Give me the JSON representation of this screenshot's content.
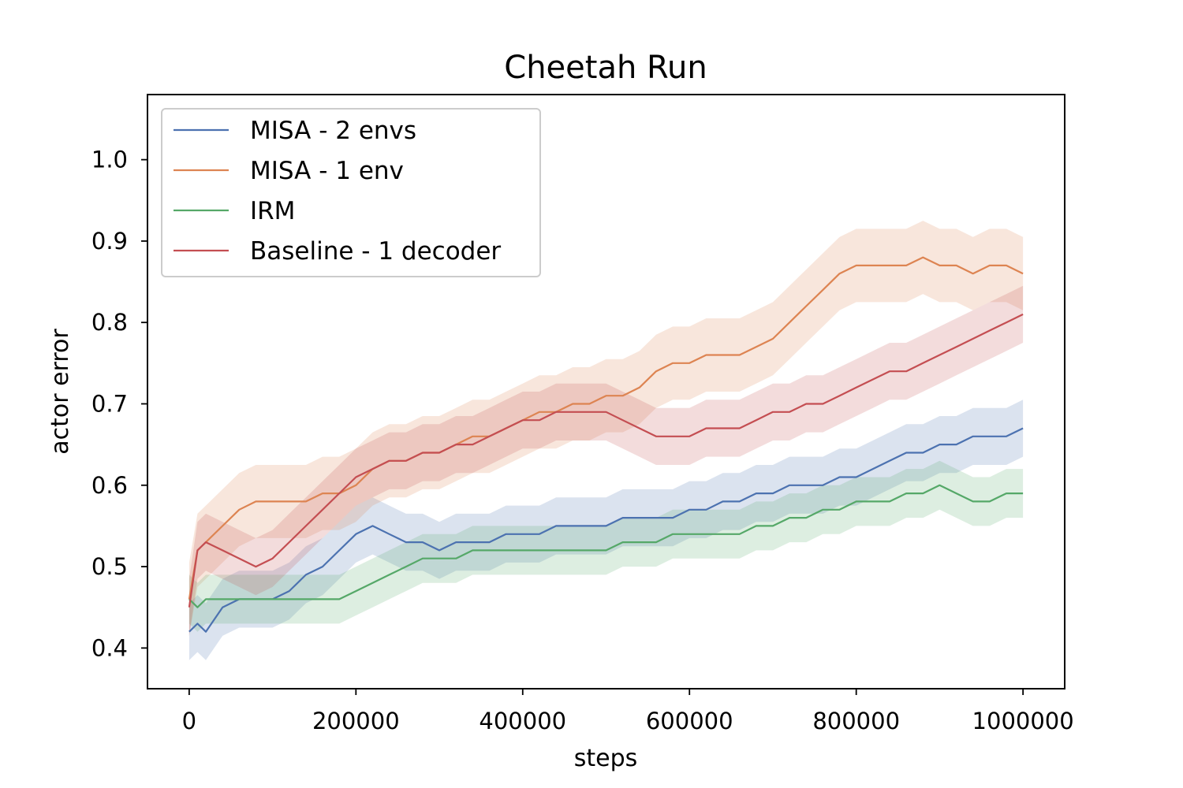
{
  "chart_data": {
    "type": "line",
    "title": "Cheetah Run",
    "xlabel": "steps",
    "ylabel": "actor error",
    "xlim": [
      -50000,
      1050000
    ],
    "ylim": [
      0.35,
      1.08
    ],
    "xticks": [
      0,
      200000,
      400000,
      600000,
      800000,
      1000000
    ],
    "xtick_labels": [
      "0",
      "200000",
      "400000",
      "600000",
      "800000",
      "1000000"
    ],
    "yticks": [
      0.4,
      0.5,
      0.6,
      0.7,
      0.8,
      0.9,
      1.0
    ],
    "ytick_labels": [
      "0.4",
      "0.5",
      "0.6",
      "0.7",
      "0.8",
      "0.9",
      "1.0"
    ],
    "grid": false,
    "legend_position": "upper-left",
    "shaded_band": "variability around each mean line",
    "x": [
      0,
      10000,
      20000,
      40000,
      60000,
      80000,
      100000,
      120000,
      140000,
      160000,
      180000,
      200000,
      220000,
      240000,
      260000,
      280000,
      300000,
      320000,
      340000,
      360000,
      380000,
      400000,
      420000,
      440000,
      460000,
      480000,
      500000,
      520000,
      540000,
      560000,
      580000,
      600000,
      620000,
      640000,
      660000,
      680000,
      700000,
      720000,
      740000,
      760000,
      780000,
      800000,
      820000,
      840000,
      860000,
      880000,
      900000,
      920000,
      940000,
      960000,
      980000,
      1000000
    ],
    "series": [
      {
        "name": "MISA - 2 envs",
        "color": "#4c72b0",
        "values": [
          0.42,
          0.43,
          0.42,
          0.45,
          0.46,
          0.46,
          0.46,
          0.47,
          0.49,
          0.5,
          0.52,
          0.54,
          0.55,
          0.54,
          0.53,
          0.53,
          0.52,
          0.53,
          0.53,
          0.53,
          0.54,
          0.54,
          0.54,
          0.55,
          0.55,
          0.55,
          0.55,
          0.56,
          0.56,
          0.56,
          0.56,
          0.57,
          0.57,
          0.58,
          0.58,
          0.59,
          0.59,
          0.6,
          0.6,
          0.6,
          0.61,
          0.61,
          0.62,
          0.63,
          0.64,
          0.64,
          0.65,
          0.65,
          0.66,
          0.66,
          0.66,
          0.67
        ],
        "band": 0.035
      },
      {
        "name": "MISA - 1 env",
        "color": "#dd8452",
        "values": [
          0.46,
          0.52,
          0.53,
          0.55,
          0.57,
          0.58,
          0.58,
          0.58,
          0.58,
          0.59,
          0.59,
          0.6,
          0.62,
          0.63,
          0.63,
          0.64,
          0.64,
          0.65,
          0.66,
          0.66,
          0.67,
          0.68,
          0.69,
          0.69,
          0.7,
          0.7,
          0.71,
          0.71,
          0.72,
          0.74,
          0.75,
          0.75,
          0.76,
          0.76,
          0.76,
          0.77,
          0.78,
          0.8,
          0.82,
          0.84,
          0.86,
          0.87,
          0.87,
          0.87,
          0.87,
          0.88,
          0.87,
          0.87,
          0.86,
          0.87,
          0.87,
          0.86
        ],
        "band": 0.045
      },
      {
        "name": "IRM",
        "color": "#55a868",
        "values": [
          0.46,
          0.45,
          0.46,
          0.46,
          0.46,
          0.46,
          0.46,
          0.46,
          0.46,
          0.46,
          0.46,
          0.47,
          0.48,
          0.49,
          0.5,
          0.51,
          0.51,
          0.51,
          0.52,
          0.52,
          0.52,
          0.52,
          0.52,
          0.52,
          0.52,
          0.52,
          0.52,
          0.53,
          0.53,
          0.53,
          0.54,
          0.54,
          0.54,
          0.54,
          0.54,
          0.55,
          0.55,
          0.56,
          0.56,
          0.57,
          0.57,
          0.58,
          0.58,
          0.58,
          0.59,
          0.59,
          0.6,
          0.59,
          0.58,
          0.58,
          0.59,
          0.59
        ],
        "band": 0.03
      },
      {
        "name": "Baseline - 1 decoder",
        "color": "#c44e52",
        "values": [
          0.45,
          0.52,
          0.53,
          0.52,
          0.51,
          0.5,
          0.51,
          0.53,
          0.55,
          0.57,
          0.59,
          0.61,
          0.62,
          0.63,
          0.63,
          0.64,
          0.64,
          0.65,
          0.65,
          0.66,
          0.67,
          0.68,
          0.68,
          0.69,
          0.69,
          0.69,
          0.69,
          0.68,
          0.67,
          0.66,
          0.66,
          0.66,
          0.67,
          0.67,
          0.67,
          0.68,
          0.69,
          0.69,
          0.7,
          0.7,
          0.71,
          0.72,
          0.73,
          0.74,
          0.74,
          0.75,
          0.76,
          0.77,
          0.78,
          0.79,
          0.8,
          0.81
        ],
        "band": 0.035
      }
    ]
  }
}
